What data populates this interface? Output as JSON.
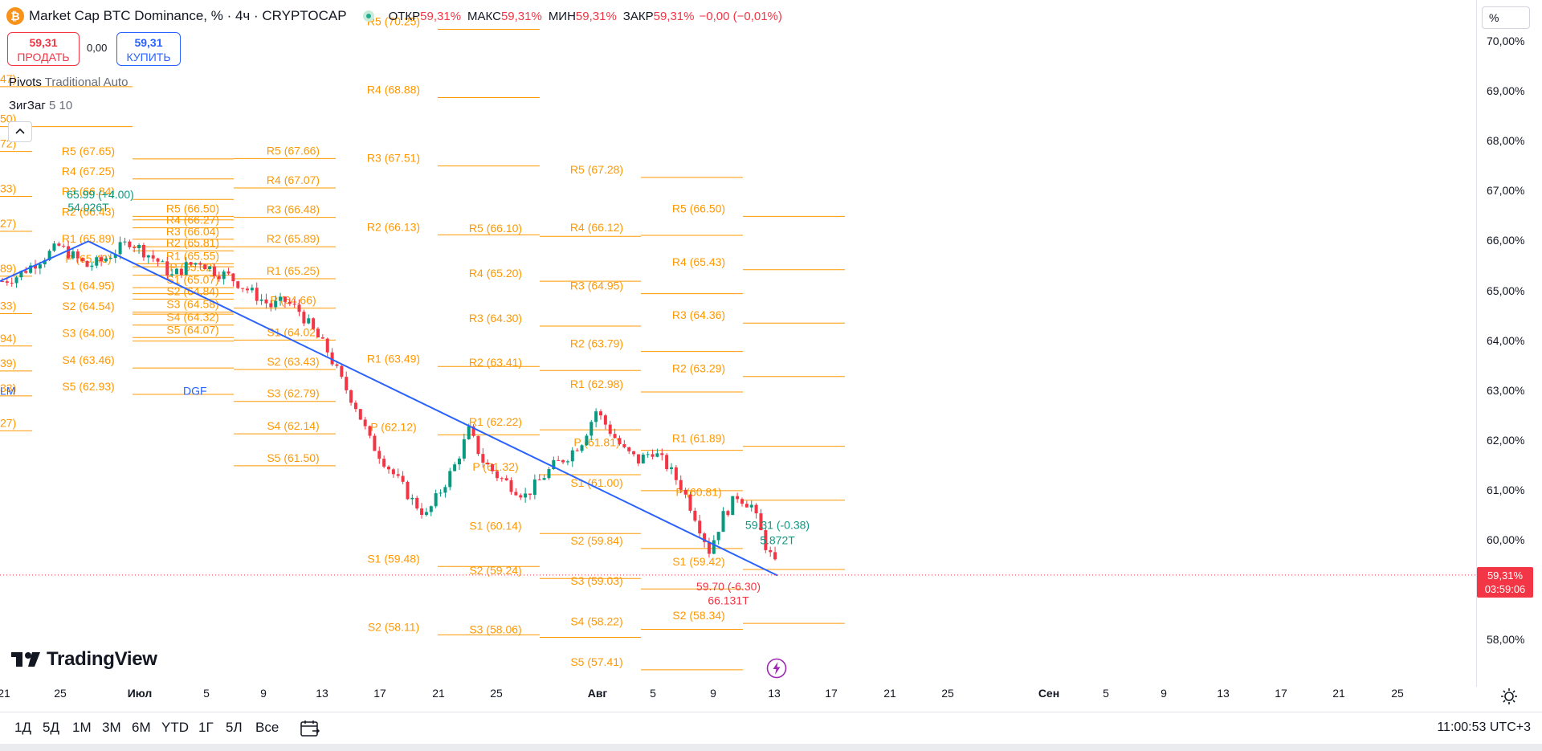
{
  "legend": {
    "symbol": "Market Cap BTC Dominance, % · 4ч · CRYPTOCAP",
    "coin_glyph": "₿",
    "ohlc": [
      {
        "key": "ОТКР",
        "value": "59,31%"
      },
      {
        "key": "МАКС",
        "value": "59,31%"
      },
      {
        "key": "МИН",
        "value": "59,31%"
      },
      {
        "key": "ЗАКР",
        "value": "59,31%"
      }
    ],
    "change": "−0,00 (−0,01%)"
  },
  "trade": {
    "sell_price": "59,31",
    "sell_label": "ПРОДАТЬ",
    "spread": "0,00",
    "buy_price": "59,31",
    "buy_label": "КУПИТЬ"
  },
  "indicators": [
    {
      "name": "Pivots",
      "params": "Traditional Auto"
    },
    {
      "name": "ЗигЗаг",
      "params": "5 10"
    }
  ],
  "price_axis": {
    "unit": "%",
    "ticks": [
      "70,00%",
      "69,00%",
      "68,00%",
      "67,00%",
      "66,00%",
      "65,00%",
      "64,00%",
      "63,00%",
      "62,00%",
      "61,00%",
      "60,00%",
      "59,00%",
      "58,00%"
    ],
    "last_price": "59,31%",
    "countdown": "03:59:06"
  },
  "time_axis": {
    "ticks": [
      {
        "label": "21",
        "month": false
      },
      {
        "label": "25",
        "month": false
      },
      {
        "label": "Июл",
        "month": true
      },
      {
        "label": "5",
        "month": false
      },
      {
        "label": "9",
        "month": false
      },
      {
        "label": "13",
        "month": false
      },
      {
        "label": "17",
        "month": false
      },
      {
        "label": "21",
        "month": false
      },
      {
        "label": "25",
        "month": false
      },
      {
        "label": "Авг",
        "month": true
      },
      {
        "label": "5",
        "month": false
      },
      {
        "label": "9",
        "month": false
      },
      {
        "label": "13",
        "month": false
      },
      {
        "label": "17",
        "month": false
      },
      {
        "label": "21",
        "month": false
      },
      {
        "label": "25",
        "month": false
      },
      {
        "label": "Сен",
        "month": true
      },
      {
        "label": "5",
        "month": false
      },
      {
        "label": "9",
        "month": false
      },
      {
        "label": "13",
        "month": false
      },
      {
        "label": "17",
        "month": false
      },
      {
        "label": "21",
        "month": false
      },
      {
        "label": "25",
        "month": false
      }
    ]
  },
  "ranges": [
    "1Д",
    "5Д",
    "1М",
    "3М",
    "6М",
    "YTD",
    "1Г",
    "5Л",
    "Все"
  ],
  "clock": "11:00:53 UTC+3",
  "brand": "TradingView",
  "colors": {
    "pivot": "#ff9800",
    "up": "#089981",
    "down": "#f23645",
    "zigzag": "#2962ff"
  },
  "chart_data": {
    "type": "candlestick",
    "price_range": [
      57.4,
      70.5
    ],
    "pivot_groups": [
      {
        "levels": [
          {
            "label": "R5 (67.65)",
            "price": 67.65
          },
          {
            "label": "R4 (67.25)",
            "price": 67.25
          },
          {
            "label": "R3 (66.84)",
            "price": 66.84
          },
          {
            "label": "R2 (66.43)",
            "price": 66.43
          },
          {
            "label": "R1 (65.89)",
            "price": 65.89
          },
          {
            "label": "P (65.49)",
            "price": 65.49
          },
          {
            "label": "S1 (64.95)",
            "price": 64.95
          },
          {
            "label": "S2 (64.54)",
            "price": 64.54
          },
          {
            "label": "S3 (64.00)",
            "price": 64.0
          },
          {
            "label": "S4 (63.46)",
            "price": 63.46
          },
          {
            "label": "S5 (62.93)",
            "price": 62.93
          }
        ]
      },
      {
        "levels": [
          {
            "label": "R5 (66.50)",
            "price": 66.5
          },
          {
            "label": "R4 (66.27)",
            "price": 66.27
          },
          {
            "label": "R3 (66.04)",
            "price": 66.04
          },
          {
            "label": "R2 (65.81)",
            "price": 65.81
          },
          {
            "label": "R1 (65.55)",
            "price": 65.55
          },
          {
            "label": "P (65.32)",
            "price": 65.32
          },
          {
            "label": "S1 (65.07)",
            "price": 65.07
          },
          {
            "label": "S2 (64.84)",
            "price": 64.84
          },
          {
            "label": "S3 (64.58)",
            "price": 64.58
          },
          {
            "label": "S4 (64.32)",
            "price": 64.32
          },
          {
            "label": "S5 (64.07)",
            "price": 64.07
          }
        ]
      },
      {
        "levels": [
          {
            "label": "R5 (67.66)",
            "price": 67.66
          },
          {
            "label": "R4 (67.07)",
            "price": 67.07
          },
          {
            "label": "R3 (66.48)",
            "price": 66.48
          },
          {
            "label": "R2 (65.89)",
            "price": 65.89
          },
          {
            "label": "R1 (65.25)",
            "price": 65.25
          },
          {
            "label": "P (64.66)",
            "price": 64.66
          },
          {
            "label": "S1 (64.02)",
            "price": 64.02
          },
          {
            "label": "S2 (63.43)",
            "price": 63.43
          },
          {
            "label": "S3 (62.79)",
            "price": 62.79
          },
          {
            "label": "S4 (62.14)",
            "price": 62.14
          },
          {
            "label": "S5 (61.50)",
            "price": 61.5
          }
        ]
      },
      {
        "levels": [
          {
            "label": "R5 (70.25)",
            "price": 70.25
          },
          {
            "label": "R4 (68.88)",
            "price": 68.88
          },
          {
            "label": "R3 (67.51)",
            "price": 67.51
          },
          {
            "label": "R2 (66.13)",
            "price": 66.13
          },
          {
            "label": "R1 (63.49)",
            "price": 63.49
          },
          {
            "label": "P (62.12)",
            "price": 62.12
          },
          {
            "label": "S1 (59.48)",
            "price": 59.48
          },
          {
            "label": "S2 (58.11)",
            "price": 58.11
          }
        ]
      },
      {
        "levels": [
          {
            "label": "R5 (66.10)",
            "price": 66.1
          },
          {
            "label": "R4 (65.20)",
            "price": 65.2
          },
          {
            "label": "R3 (64.30)",
            "price": 64.3
          },
          {
            "label": "R2 (63.41)",
            "price": 63.41
          },
          {
            "label": "R1 (62.22)",
            "price": 62.22
          },
          {
            "label": "P (61.32)",
            "price": 61.32
          },
          {
            "label": "S1 (60.14)",
            "price": 60.14
          },
          {
            "label": "S2 (59.24)",
            "price": 59.24
          },
          {
            "label": "S3 (58.06)",
            "price": 58.06
          }
        ]
      },
      {
        "levels": [
          {
            "label": "R5 (67.28)",
            "price": 67.28
          },
          {
            "label": "R4 (66.12)",
            "price": 66.12
          },
          {
            "label": "R3 (64.95)",
            "price": 64.95
          },
          {
            "label": "R2 (63.79)",
            "price": 63.79
          },
          {
            "label": "R1 (62.98)",
            "price": 62.98
          },
          {
            "label": "P (61.81)",
            "price": 61.81
          },
          {
            "label": "S1 (61.00)",
            "price": 61.0
          },
          {
            "label": "S2 (59.84)",
            "price": 59.84
          },
          {
            "label": "S3 (59.03)",
            "price": 59.03
          },
          {
            "label": "S4 (58.22)",
            "price": 58.22
          },
          {
            "label": "S5 (57.41)",
            "price": 57.41
          }
        ]
      },
      {
        "levels": [
          {
            "label": "R5 (66.50)",
            "price": 66.5
          },
          {
            "label": "R4 (65.43)",
            "price": 65.43
          },
          {
            "label": "R3 (64.36)",
            "price": 64.36
          },
          {
            "label": "R2 (63.29)",
            "price": 63.29
          },
          {
            "label": "R1 (61.89)",
            "price": 61.89
          },
          {
            "label": "P (60.81)",
            "price": 60.81
          },
          {
            "label": "S1 (59.42)",
            "price": 59.42
          },
          {
            "label": "S2 (58.34)",
            "price": 58.34
          }
        ]
      }
    ],
    "edge_labels": [
      "72)",
      "33)",
      "27)",
      "89)",
      "33)",
      "94)",
      "39)",
      "33)",
      "27)"
    ],
    "edge_labels_top": [
      "47)",
      "50)"
    ],
    "zigzag": [
      {
        "price": 65.2
      },
      {
        "price": 66.0
      },
      {
        "price": 59.3
      }
    ],
    "zigzag_labels": [
      {
        "text": "65.99 (+4.00)",
        "price": 66.86,
        "color": "up"
      },
      {
        "text": "54.026T",
        "price": 66.6,
        "color": "up"
      },
      {
        "text": "59.31 (-0.38)",
        "price": 60.23,
        "color": "up"
      },
      {
        "text": "5.872T",
        "price": 59.93,
        "color": "up"
      },
      {
        "text": "59.70 (-6.30)",
        "price": 59.0,
        "color": "down"
      },
      {
        "text": "66.131T",
        "price": 58.72,
        "color": "down"
      }
    ],
    "letter_labels": [
      "LM",
      "DGF"
    ],
    "last_price": 59.31,
    "candles_path": [
      [
        0,
        65.2
      ],
      [
        3,
        65.3
      ],
      [
        6,
        65.5
      ],
      [
        9,
        65.7
      ],
      [
        12,
        65.9
      ],
      [
        15,
        65.7
      ],
      [
        18,
        65.5
      ],
      [
        21,
        65.6
      ],
      [
        24,
        65.8
      ],
      [
        27,
        66.0
      ],
      [
        30,
        65.8
      ],
      [
        33,
        65.6
      ],
      [
        36,
        65.3
      ],
      [
        39,
        65.5
      ],
      [
        42,
        65.6
      ],
      [
        45,
        65.4
      ],
      [
        48,
        65.3
      ],
      [
        51,
        65.1
      ],
      [
        54,
        64.9
      ],
      [
        57,
        64.7
      ],
      [
        60,
        64.8
      ],
      [
        63,
        64.6
      ],
      [
        66,
        64.2
      ],
      [
        69,
        63.8
      ],
      [
        72,
        63.2
      ],
      [
        75,
        62.7
      ],
      [
        78,
        62.0
      ],
      [
        81,
        61.6
      ],
      [
        84,
        61.2
      ],
      [
        87,
        60.8
      ],
      [
        90,
        60.5
      ],
      [
        93,
        61.0
      ],
      [
        96,
        61.5
      ],
      [
        99,
        62.2
      ],
      [
        102,
        61.6
      ],
      [
        105,
        61.3
      ],
      [
        108,
        61.1
      ],
      [
        111,
        60.9
      ],
      [
        114,
        61.2
      ],
      [
        117,
        61.5
      ],
      [
        120,
        61.7
      ],
      [
        123,
        62.0
      ],
      [
        126,
        62.6
      ],
      [
        129,
        62.2
      ],
      [
        132,
        61.8
      ],
      [
        135,
        61.6
      ],
      [
        138,
        61.8
      ],
      [
        141,
        61.5
      ],
      [
        144,
        61.1
      ],
      [
        147,
        60.5
      ],
      [
        150,
        59.8
      ],
      [
        153,
        60.5
      ],
      [
        156,
        60.9
      ],
      [
        159,
        60.7
      ],
      [
        162,
        59.9
      ],
      [
        165,
        59.31
      ]
    ]
  }
}
